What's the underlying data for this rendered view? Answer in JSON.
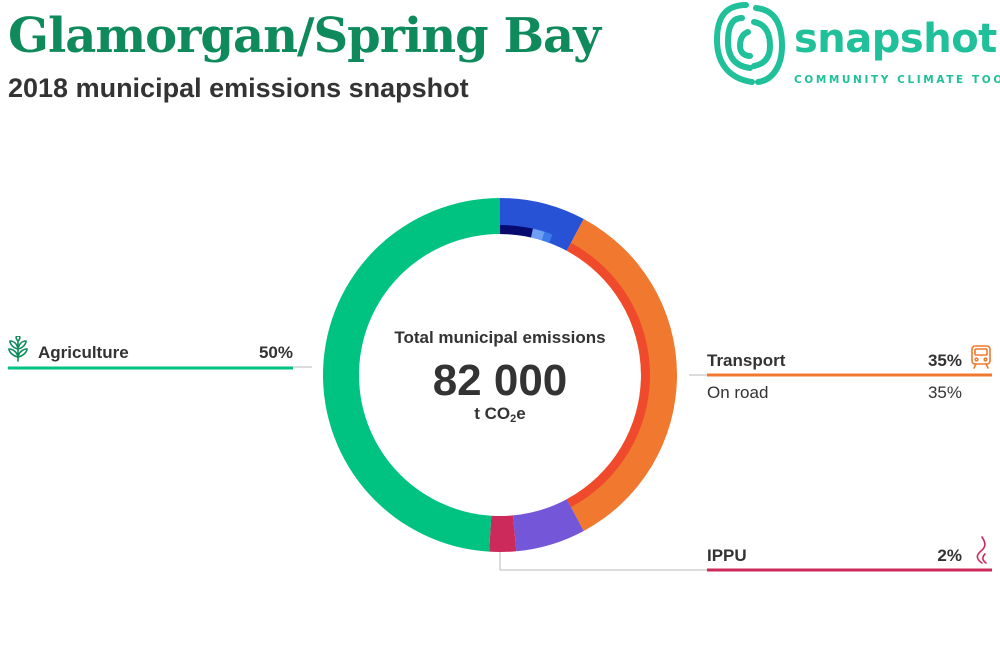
{
  "header": {
    "title": "Glamorgan/Spring Bay",
    "subtitle": "2018 municipal emissions snapshot"
  },
  "logo": {
    "word": "snapshot",
    "tagline": "COMMUNITY CLIMATE TOOL"
  },
  "center": {
    "label": "Total municipal emissions",
    "total": "82 000",
    "unit_prefix": "t CO",
    "unit_sub": "2",
    "unit_suffix": "e"
  },
  "colors": {
    "title": "#0e8a5c",
    "agriculture": "#00c281",
    "transport": "#f1782f",
    "transport_on_road": "#ef4a2c",
    "ippu": "#cc2a5a",
    "waste": "#7457d9",
    "stationary_energy": "#2752d6"
  },
  "chart_data": {
    "type": "donut",
    "total": 82000,
    "unit": "t CO2e",
    "segments": [
      {
        "color": "#2752d6",
        "value": 8,
        "inner": [
          {
            "color": "#070a6e",
            "value": 3.6
          },
          {
            "color": "#6e9ff2",
            "value": 1.3
          },
          {
            "color": "#3b7ae8",
            "value": 0.9
          }
        ]
      },
      {
        "color": "#f1782f",
        "value": 35,
        "inner": [
          {
            "color": "#ef4a2c",
            "value": 35
          }
        ]
      },
      {
        "color": "#7457d9",
        "value": 6.5
      },
      {
        "color": "#cc2a5a",
        "value": 2.5
      },
      {
        "color": "#00c281",
        "value": 50
      }
    ],
    "labels": [
      {
        "name": "Agriculture",
        "percent": "50%",
        "icon": "plant-icon"
      },
      {
        "name": "Transport",
        "percent": "35%",
        "icon": "bus-icon",
        "sub": [
          {
            "name": "On road",
            "percent": "35%"
          }
        ]
      },
      {
        "name": "IPPU",
        "percent": "2%",
        "icon": "smoke-icon"
      }
    ]
  }
}
